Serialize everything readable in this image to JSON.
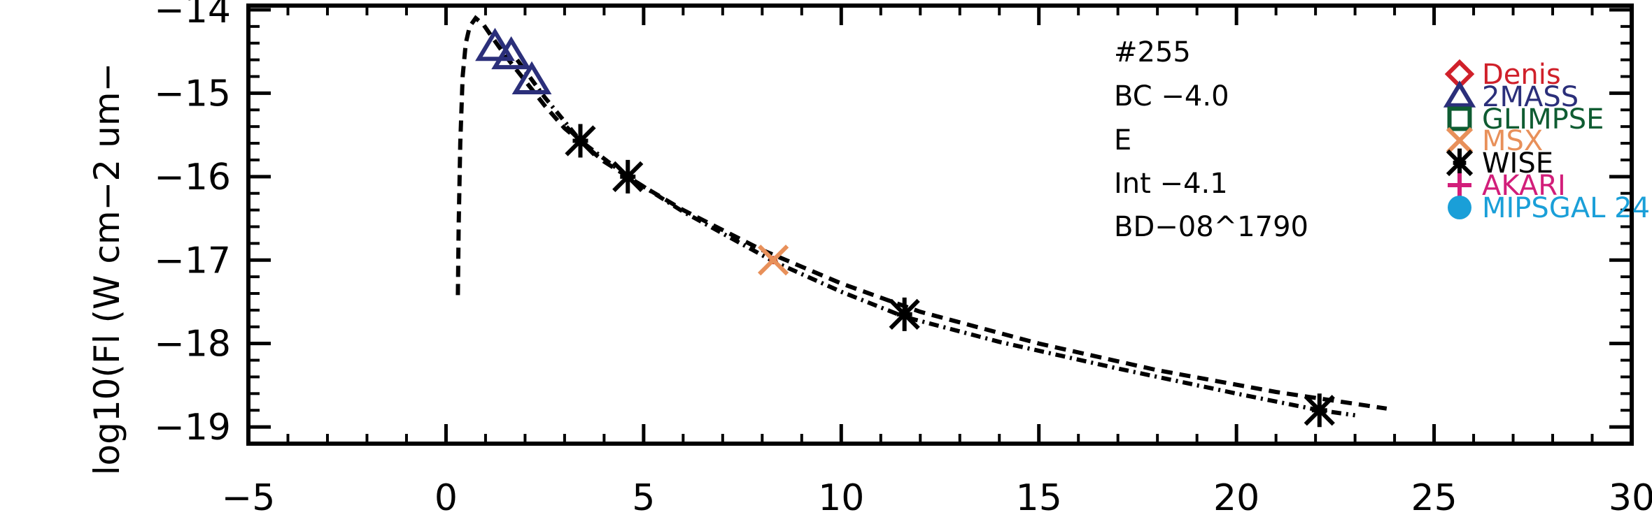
{
  "chart_data": {
    "type": "scatter",
    "ylabel": "log10(Fl (W cm−2 um−",
    "xlabel": "",
    "xlim": [
      -5,
      30
    ],
    "ylim": [
      -19.2,
      -13.95
    ],
    "x_ticks": [
      -5,
      0,
      5,
      10,
      15,
      20,
      25,
      30
    ],
    "x_tick_labels": [
      "−5",
      "0",
      "5",
      "10",
      "15",
      "20",
      "25",
      "30"
    ],
    "y_ticks": [
      -19,
      -18,
      -17,
      -16,
      -15,
      -14
    ],
    "y_tick_labels": [
      "−19",
      "−18",
      "−17",
      "−16",
      "−15",
      "−14"
    ],
    "grid": false,
    "legend_position": "top-right",
    "annotations": [
      "#255",
      "BC −4.0",
      "E",
      "Int −4.1",
      "BD−08^1790"
    ],
    "legend": [
      {
        "label": "Denis",
        "marker": "diamond",
        "color": "#d0202a"
      },
      {
        "label": "2MASS",
        "marker": "triangle",
        "color": "#2b2f7a"
      },
      {
        "label": "GLIMPSE",
        "marker": "square",
        "color": "#0f5c32"
      },
      {
        "label": "MSX",
        "marker": "x",
        "color": "#e8905a"
      },
      {
        "label": "WISE",
        "marker": "asterisk",
        "color": "#000000"
      },
      {
        "label": "AKARI",
        "marker": "plus",
        "color": "#d21e7a"
      },
      {
        "label": "MIPSGAL 24",
        "marker": "circle",
        "color": "#1a9fd8"
      }
    ],
    "series": [
      {
        "name": "2MASS",
        "marker": "triangle",
        "color": "#2b2f7a",
        "x": [
          1.24,
          1.65,
          2.17
        ],
        "y": [
          -14.45,
          -14.55,
          -14.85
        ]
      },
      {
        "name": "WISE",
        "marker": "asterisk",
        "color": "#000000",
        "x": [
          3.4,
          4.6,
          11.6,
          22.1
        ],
        "y": [
          -15.57,
          -16.0,
          -17.65,
          -18.8
        ]
      },
      {
        "name": "MSX",
        "marker": "x",
        "color": "#e8905a",
        "x": [
          8.28
        ],
        "y": [
          -17.0
        ]
      }
    ],
    "model_curves": [
      {
        "style": "dashed",
        "x": [
          0.3,
          0.32,
          0.36,
          0.42,
          0.5,
          0.6,
          0.75,
          0.95,
          1.2,
          1.5,
          2.0,
          2.5,
          3.0,
          4.0,
          5.0,
          6.0,
          8.0,
          10.0,
          12.0,
          15.0,
          18.0,
          21.0,
          23.8
        ],
        "y": [
          -17.42,
          -16.6,
          -15.6,
          -14.8,
          -14.4,
          -14.2,
          -14.1,
          -14.18,
          -14.35,
          -14.55,
          -14.85,
          -15.15,
          -15.42,
          -15.82,
          -16.12,
          -16.4,
          -16.88,
          -17.28,
          -17.62,
          -18.0,
          -18.32,
          -18.58,
          -18.78
        ]
      },
      {
        "style": "dashdot",
        "x": [
          1.8,
          2.5,
          3.4,
          4.6,
          6.0,
          8.3,
          10.0,
          11.6,
          14.0,
          17.0,
          20.0,
          22.1,
          23.0
        ],
        "y": [
          -14.6,
          -15.05,
          -15.57,
          -16.0,
          -16.42,
          -17.02,
          -17.38,
          -17.68,
          -17.98,
          -18.3,
          -18.6,
          -18.8,
          -18.86
        ]
      }
    ]
  }
}
